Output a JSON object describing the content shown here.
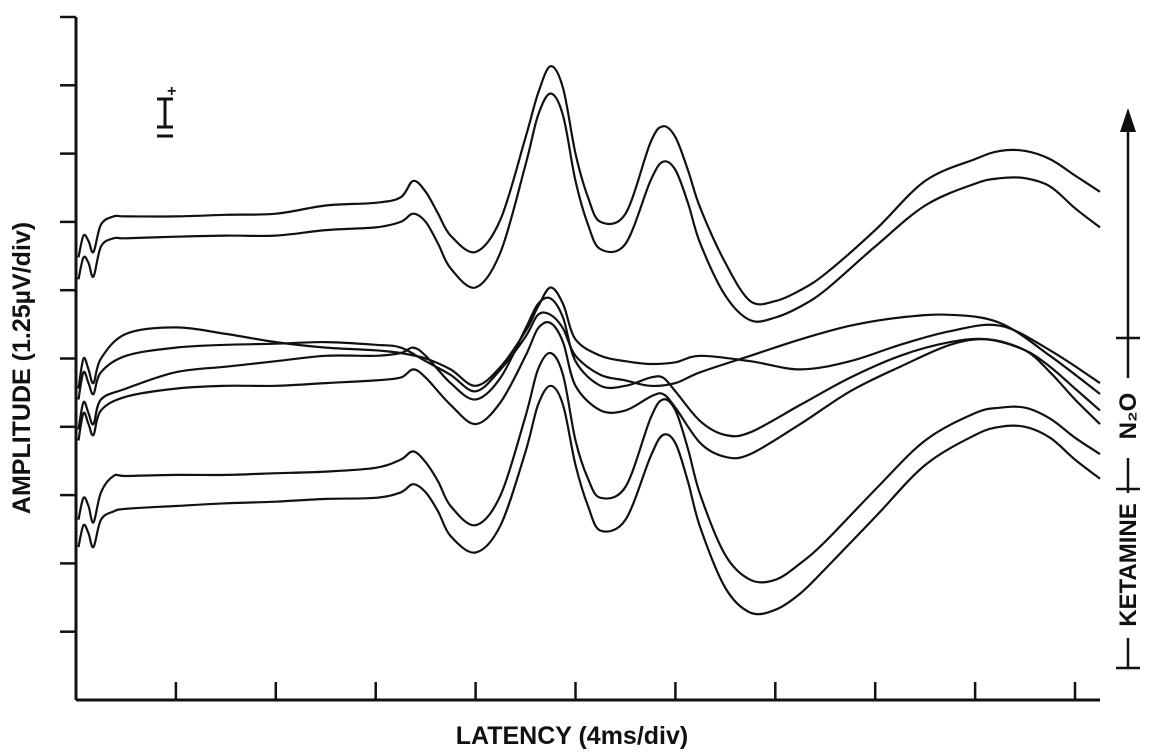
{
  "chart_data": {
    "type": "line",
    "title": "",
    "xlabel": "LATENCY (4ms/div)",
    "ylabel": "AMPLITUDE (1.25µV/div)",
    "x_units": "ms",
    "xlim": [
      0,
      41
    ],
    "x_tick_step": 4,
    "ylim": [
      0,
      12.5
    ],
    "y_tick_step": 1.25,
    "y_ticks_count": 10,
    "grid": false,
    "legend": "none",
    "polarity_marker": "+",
    "annotations": {
      "bracket_top_label": "N₂O",
      "bracket_bottom_label": "KETAMINE",
      "arrow": "upward, from bottom of ketamine bracket to top"
    },
    "notes": "Stacked waveforms in arbitrary vertical offsets; y values are positions on the amplitude axis.",
    "series": [
      {
        "x": [
          0.1,
          0.3,
          0.5,
          0.7,
          1.0,
          1.5,
          2,
          4,
          6,
          8,
          10,
          12,
          13,
          13.5,
          14,
          14.5,
          15,
          16,
          17,
          18,
          18.5,
          19,
          19.5,
          20,
          20.5,
          21,
          22,
          23,
          23.5,
          24,
          24.5,
          25,
          26,
          27,
          28,
          29,
          30,
          32,
          34,
          36,
          37,
          38,
          39,
          40,
          41
        ],
        "y": [
          8.1,
          8.5,
          8.4,
          8.2,
          8.7,
          8.85,
          8.85,
          8.85,
          8.88,
          8.9,
          9.05,
          9.1,
          9.2,
          9.5,
          9.3,
          8.9,
          8.5,
          8.2,
          8.8,
          10.3,
          11.1,
          11.6,
          11.2,
          10.0,
          9.2,
          8.75,
          8.9,
          10.2,
          10.5,
          10.3,
          9.7,
          9.0,
          8.0,
          7.3,
          7.3,
          7.5,
          7.8,
          8.6,
          9.5,
          9.9,
          10.05,
          10.05,
          9.9,
          9.6,
          9.3
        ],
        "color": "#111111"
      },
      {
        "x": [
          0.1,
          0.3,
          0.5,
          0.7,
          1.0,
          1.5,
          2,
          4,
          6,
          8,
          10,
          12,
          13,
          13.5,
          14,
          14.5,
          15,
          16,
          17,
          18,
          18.5,
          19,
          19.5,
          20,
          20.5,
          21,
          22,
          23,
          23.5,
          24,
          24.5,
          25,
          26,
          27,
          28,
          29,
          30,
          32,
          34,
          36,
          37,
          38,
          39,
          40,
          41
        ],
        "y": [
          7.7,
          8.1,
          8.0,
          7.75,
          8.3,
          8.45,
          8.45,
          8.48,
          8.5,
          8.5,
          8.6,
          8.65,
          8.75,
          8.9,
          8.75,
          8.35,
          7.9,
          7.55,
          8.2,
          9.8,
          10.7,
          11.1,
          10.7,
          9.5,
          8.7,
          8.25,
          8.35,
          9.5,
          9.85,
          9.7,
          9.1,
          8.35,
          7.4,
          6.95,
          7.0,
          7.2,
          7.5,
          8.3,
          9.05,
          9.45,
          9.55,
          9.55,
          9.4,
          9.0,
          8.65
        ],
        "color": "#111111"
      },
      {
        "x": [
          0.1,
          0.3,
          0.5,
          0.7,
          1.0,
          2,
          4,
          6,
          8,
          10,
          12,
          13,
          14,
          15,
          16,
          17,
          18,
          18.5,
          19,
          19.5,
          20,
          21,
          22,
          23,
          24,
          25,
          27,
          29,
          31,
          33,
          35,
          37,
          39,
          41
        ],
        "y": [
          5.7,
          6.25,
          6.05,
          5.8,
          6.25,
          6.7,
          6.82,
          6.7,
          6.55,
          6.45,
          6.4,
          6.35,
          6.25,
          6.05,
          5.75,
          6.1,
          6.75,
          7.2,
          7.55,
          7.25,
          6.6,
          6.3,
          6.2,
          6.15,
          6.18,
          6.3,
          6.2,
          6.05,
          6.2,
          6.5,
          6.75,
          6.85,
          6.4,
          5.8
        ],
        "color": "#111111"
      },
      {
        "x": [
          0.1,
          0.3,
          0.5,
          0.7,
          1.0,
          2,
          4,
          6,
          8,
          10,
          12,
          13,
          14,
          15,
          16,
          17,
          18,
          18.5,
          19,
          19.5,
          20,
          21,
          22,
          23,
          24,
          25,
          27,
          29,
          31,
          33,
          35,
          37,
          39,
          41
        ],
        "y": [
          5.5,
          6.0,
          5.8,
          5.6,
          6.0,
          6.3,
          6.45,
          6.5,
          6.52,
          6.55,
          6.5,
          6.45,
          6.2,
          5.95,
          5.65,
          6.05,
          6.65,
          7.05,
          7.05,
          6.8,
          6.3,
          5.95,
          5.85,
          5.75,
          5.8,
          6.0,
          6.3,
          6.6,
          6.85,
          7.0,
          7.05,
          6.9,
          6.3,
          5.6
        ],
        "color": "#111111"
      },
      {
        "x": [
          0.1,
          0.3,
          0.5,
          0.7,
          1.0,
          2,
          4,
          6,
          8,
          10,
          12,
          13,
          13.5,
          14,
          15,
          16,
          17,
          18,
          18.5,
          19,
          19.5,
          20,
          21,
          22,
          23,
          23.5,
          24,
          25,
          26,
          27,
          29,
          31,
          33,
          35,
          36.5,
          38,
          39,
          40,
          41
        ],
        "y": [
          4.95,
          5.45,
          5.25,
          5.05,
          5.5,
          5.7,
          6.0,
          6.1,
          6.2,
          6.3,
          6.3,
          6.35,
          6.45,
          6.3,
          5.8,
          5.5,
          5.9,
          6.8,
          7.25,
          7.35,
          7.0,
          6.2,
          5.75,
          5.75,
          5.9,
          5.9,
          5.65,
          5.1,
          4.85,
          4.9,
          5.4,
          5.9,
          6.3,
          6.55,
          6.6,
          6.4,
          6.1,
          5.7,
          5.3
        ],
        "color": "#111111"
      },
      {
        "x": [
          0.1,
          0.3,
          0.5,
          0.7,
          1.0,
          2,
          4,
          6,
          8,
          10,
          12,
          13,
          13.5,
          14,
          15,
          16,
          17,
          18,
          18.5,
          19,
          19.5,
          20,
          21,
          22,
          23,
          23.5,
          24,
          25,
          26,
          27,
          29,
          31,
          33,
          35,
          36.5,
          38,
          39,
          40,
          41
        ],
        "y": [
          4.75,
          5.25,
          5.05,
          4.85,
          5.3,
          5.55,
          5.7,
          5.75,
          5.75,
          5.8,
          5.85,
          5.9,
          6.05,
          5.9,
          5.4,
          5.05,
          5.45,
          6.3,
          6.8,
          6.9,
          6.55,
          5.75,
          5.3,
          5.3,
          5.55,
          5.6,
          5.35,
          4.7,
          4.45,
          4.5,
          5.05,
          5.65,
          6.1,
          6.5,
          6.6,
          6.4,
          6.0,
          5.5,
          5.05
        ],
        "color": "#111111"
      },
      {
        "x": [
          0.1,
          0.3,
          0.5,
          0.7,
          1.0,
          1.5,
          2,
          4,
          6,
          8,
          10,
          12,
          13,
          13.5,
          14,
          14.5,
          15,
          16,
          17,
          18,
          18.5,
          19,
          19.5,
          20,
          20.5,
          21,
          22,
          23,
          23.5,
          24,
          24.5,
          25,
          26,
          27,
          28,
          29,
          30,
          32,
          34,
          36,
          37,
          38,
          39,
          40,
          41
        ],
        "y": [
          3.3,
          3.7,
          3.55,
          3.25,
          3.8,
          4.1,
          4.1,
          4.12,
          4.12,
          4.15,
          4.18,
          4.25,
          4.4,
          4.55,
          4.35,
          4.0,
          3.55,
          3.2,
          3.75,
          5.2,
          6.05,
          6.35,
          5.95,
          4.75,
          4.05,
          3.7,
          3.9,
          5.15,
          5.5,
          5.3,
          4.6,
          3.75,
          2.65,
          2.2,
          2.2,
          2.5,
          2.9,
          3.85,
          4.75,
          5.25,
          5.35,
          5.35,
          5.15,
          4.8,
          4.5
        ],
        "color": "#111111"
      },
      {
        "x": [
          0.1,
          0.3,
          0.5,
          0.7,
          1.0,
          1.5,
          2,
          4,
          6,
          8,
          10,
          12,
          13,
          13.5,
          14,
          14.5,
          15,
          16,
          17,
          18,
          18.5,
          19,
          19.5,
          20,
          20.5,
          21,
          22,
          23,
          23.5,
          24,
          24.5,
          25,
          26,
          27,
          28,
          29,
          30,
          32,
          34,
          36,
          37,
          38,
          39,
          40,
          41
        ],
        "y": [
          2.8,
          3.2,
          3.05,
          2.8,
          3.3,
          3.45,
          3.5,
          3.55,
          3.6,
          3.63,
          3.68,
          3.7,
          3.8,
          3.95,
          3.8,
          3.45,
          3.0,
          2.7,
          3.2,
          4.55,
          5.4,
          5.75,
          5.4,
          4.3,
          3.55,
          3.1,
          3.3,
          4.45,
          4.85,
          4.7,
          4.0,
          3.15,
          2.05,
          1.6,
          1.65,
          1.95,
          2.4,
          3.35,
          4.3,
          4.85,
          5.0,
          5.0,
          4.8,
          4.4,
          4.05
        ],
        "color": "#111111"
      }
    ]
  }
}
